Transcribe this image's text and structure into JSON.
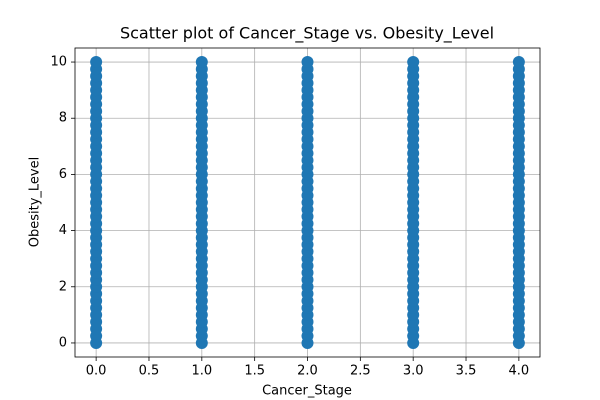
{
  "chart_data": {
    "type": "scatter",
    "title": "Scatter plot of Cancer_Stage vs. Obesity_Level",
    "x_label": "Cancer_Stage",
    "y_label": "Obesity_Level",
    "color": "#1f77b4",
    "grid": true,
    "xlim": [
      -0.2,
      4.2
    ],
    "ylim": [
      -0.5,
      10.5
    ],
    "xticks": [
      {
        "value": 0,
        "label": "0.0"
      },
      0.5,
      {
        "value": 1,
        "label": "1.0"
      },
      1.5,
      {
        "value": 2,
        "label": "2.0"
      },
      2.5,
      {
        "value": 3,
        "label": "3.0"
      },
      3.5,
      {
        "value": 4,
        "label": "4.0"
      }
    ],
    "yticks": [
      0,
      2,
      4,
      6,
      8,
      10
    ],
    "x": [
      0,
      0,
      0,
      0,
      0,
      0,
      0,
      0,
      0,
      0,
      0,
      0,
      0,
      0,
      0,
      0,
      0,
      0,
      0,
      0,
      0,
      0,
      0,
      0,
      0,
      0,
      0,
      0,
      0,
      0,
      0,
      0,
      0,
      0,
      0,
      0,
      0,
      0,
      0,
      0,
      0,
      1,
      1,
      1,
      1,
      1,
      1,
      1,
      1,
      1,
      1,
      1,
      1,
      1,
      1,
      1,
      1,
      1,
      1,
      1,
      1,
      1,
      1,
      1,
      1,
      1,
      1,
      1,
      1,
      1,
      1,
      1,
      1,
      1,
      1,
      1,
      1,
      1,
      1,
      1,
      1,
      1,
      2,
      2,
      2,
      2,
      2,
      2,
      2,
      2,
      2,
      2,
      2,
      2,
      2,
      2,
      2,
      2,
      2,
      2,
      2,
      2,
      2,
      2,
      2,
      2,
      2,
      2,
      2,
      2,
      2,
      2,
      2,
      2,
      2,
      2,
      2,
      2,
      2,
      2,
      2,
      2,
      2,
      3,
      3,
      3,
      3,
      3,
      3,
      3,
      3,
      3,
      3,
      3,
      3,
      3,
      3,
      3,
      3,
      3,
      3,
      3,
      3,
      3,
      3,
      3,
      3,
      3,
      3,
      3,
      3,
      3,
      3,
      3,
      3,
      3,
      3,
      3,
      3,
      3,
      3,
      3,
      3,
      3,
      4,
      4,
      4,
      4,
      4,
      4,
      4,
      4,
      4,
      4,
      4,
      4,
      4,
      4,
      4,
      4,
      4,
      4,
      4,
      4,
      4,
      4,
      4,
      4,
      4,
      4,
      4,
      4,
      4,
      4,
      4,
      4,
      4,
      4,
      4,
      4,
      4,
      4,
      4,
      4,
      4
    ],
    "y": [
      0,
      0.25,
      0.5,
      0.75,
      1,
      1.25,
      1.5,
      1.75,
      2,
      2.25,
      2.5,
      2.75,
      3,
      3.25,
      3.5,
      3.75,
      4,
      4.25,
      4.5,
      4.75,
      5,
      5.25,
      5.5,
      5.75,
      6,
      6.25,
      6.5,
      6.75,
      7,
      7.25,
      7.5,
      7.75,
      8,
      8.25,
      8.5,
      8.75,
      9,
      9.25,
      9.5,
      9.75,
      10,
      0,
      0.25,
      0.5,
      0.75,
      1,
      1.25,
      1.5,
      1.75,
      2,
      2.25,
      2.5,
      2.75,
      3,
      3.25,
      3.5,
      3.75,
      4,
      4.25,
      4.5,
      4.75,
      5,
      5.25,
      5.5,
      5.75,
      6,
      6.25,
      6.5,
      6.75,
      7,
      7.25,
      7.5,
      7.75,
      8,
      8.25,
      8.5,
      8.75,
      9,
      9.25,
      9.5,
      9.75,
      10,
      0,
      0.25,
      0.5,
      0.75,
      1,
      1.25,
      1.5,
      1.75,
      2,
      2.25,
      2.5,
      2.75,
      3,
      3.25,
      3.5,
      3.75,
      4,
      4.25,
      4.5,
      4.75,
      5,
      5.25,
      5.5,
      5.75,
      6,
      6.25,
      6.5,
      6.75,
      7,
      7.25,
      7.5,
      7.75,
      8,
      8.25,
      8.5,
      8.75,
      9,
      9.25,
      9.5,
      9.75,
      10,
      0,
      0.25,
      0.5,
      0.75,
      1,
      1.25,
      1.5,
      1.75,
      2,
      2.25,
      2.5,
      2.75,
      3,
      3.25,
      3.5,
      3.75,
      4,
      4.25,
      4.5,
      4.75,
      5,
      5.25,
      5.5,
      5.75,
      6,
      6.25,
      6.5,
      6.75,
      7,
      7.25,
      7.5,
      7.75,
      8,
      8.25,
      8.5,
      8.75,
      9,
      9.25,
      9.5,
      9.75,
      10,
      0,
      0.25,
      0.5,
      0.75,
      1,
      1.25,
      1.5,
      1.75,
      2,
      2.25,
      2.5,
      2.75,
      3,
      3.25,
      3.5,
      3.75,
      4,
      4.25,
      4.5,
      4.75,
      5,
      5.25,
      5.5,
      5.75,
      6,
      6.25,
      6.5,
      6.75,
      7,
      7.25,
      7.5,
      7.75,
      8,
      8.25,
      8.5,
      8.75,
      9,
      9.25,
      9.5,
      9.75,
      10
    ]
  }
}
